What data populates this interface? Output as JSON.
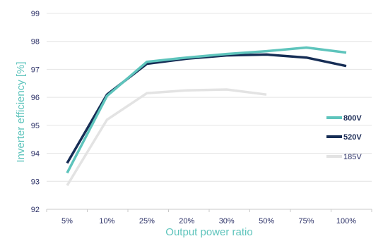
{
  "chart_data": {
    "type": "line",
    "title": "",
    "xlabel": "Output power ratio",
    "ylabel": "Inverter efficiency [%]",
    "categories": [
      "5%",
      "10%",
      "25%",
      "20%",
      "30%",
      "50%",
      "75%",
      "100%"
    ],
    "ylim": [
      92,
      99
    ],
    "yticks": [
      92,
      93,
      94,
      95,
      96,
      97,
      98,
      99
    ],
    "grid": "horizontal",
    "legend_position": "right",
    "series": [
      {
        "name": "800V",
        "color": "#5ec4bc",
        "values": [
          93.3,
          96.05,
          97.27,
          97.42,
          97.55,
          97.65,
          97.78,
          97.6
        ]
      },
      {
        "name": "520V",
        "color": "#162d55",
        "values": [
          93.65,
          96.1,
          97.2,
          97.38,
          97.5,
          97.53,
          97.42,
          97.12
        ]
      },
      {
        "name": "185V",
        "color": "#e3e3e3",
        "values": [
          92.85,
          95.2,
          96.15,
          96.25,
          96.28,
          96.1,
          null,
          null
        ]
      }
    ]
  }
}
